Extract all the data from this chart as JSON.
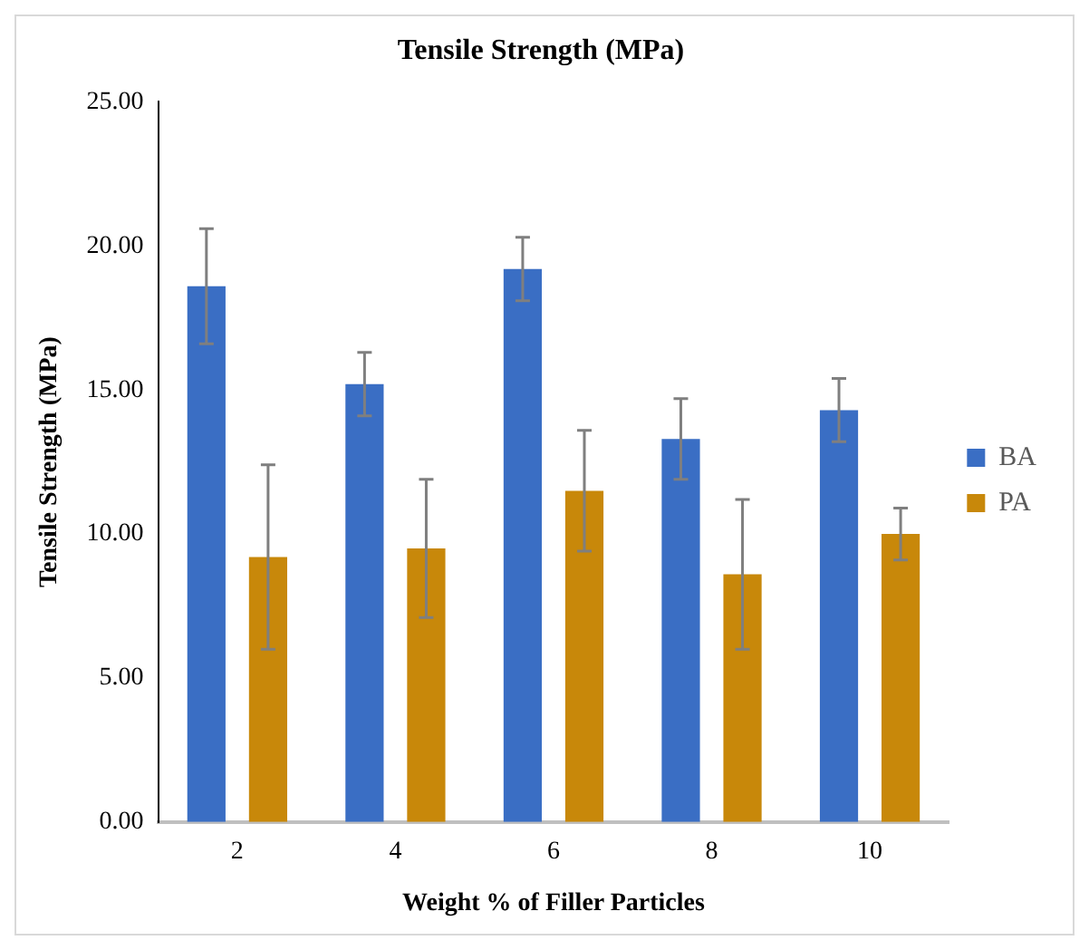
{
  "chart_data": {
    "type": "bar",
    "title": "Tensile Strength (MPa)",
    "xlabel": "Weight % of Filler Particles",
    "ylabel": "Tensile Strength (MPa)",
    "categories": [
      "2",
      "4",
      "6",
      "8",
      "10"
    ],
    "series": [
      {
        "name": "BA",
        "color": "#3a6ec4",
        "values": [
          18.6,
          15.2,
          19.2,
          13.3,
          14.3
        ],
        "errors": [
          2.0,
          1.1,
          1.1,
          1.4,
          1.1
        ]
      },
      {
        "name": "PA",
        "color": "#c8880a",
        "values": [
          9.2,
          9.5,
          11.5,
          8.6,
          10.0
        ],
        "errors": [
          3.2,
          2.4,
          2.1,
          2.6,
          0.9
        ]
      }
    ],
    "ylim": [
      0,
      25
    ],
    "yticks": [
      {
        "value": 0,
        "label": "0.00"
      },
      {
        "value": 5,
        "label": "5.00"
      },
      {
        "value": 10,
        "label": "10.00"
      },
      {
        "value": 15,
        "label": "15.00"
      },
      {
        "value": 20,
        "label": "20.00"
      },
      {
        "value": 25,
        "label": "25.00"
      }
    ],
    "grid": false,
    "legend": "right"
  }
}
